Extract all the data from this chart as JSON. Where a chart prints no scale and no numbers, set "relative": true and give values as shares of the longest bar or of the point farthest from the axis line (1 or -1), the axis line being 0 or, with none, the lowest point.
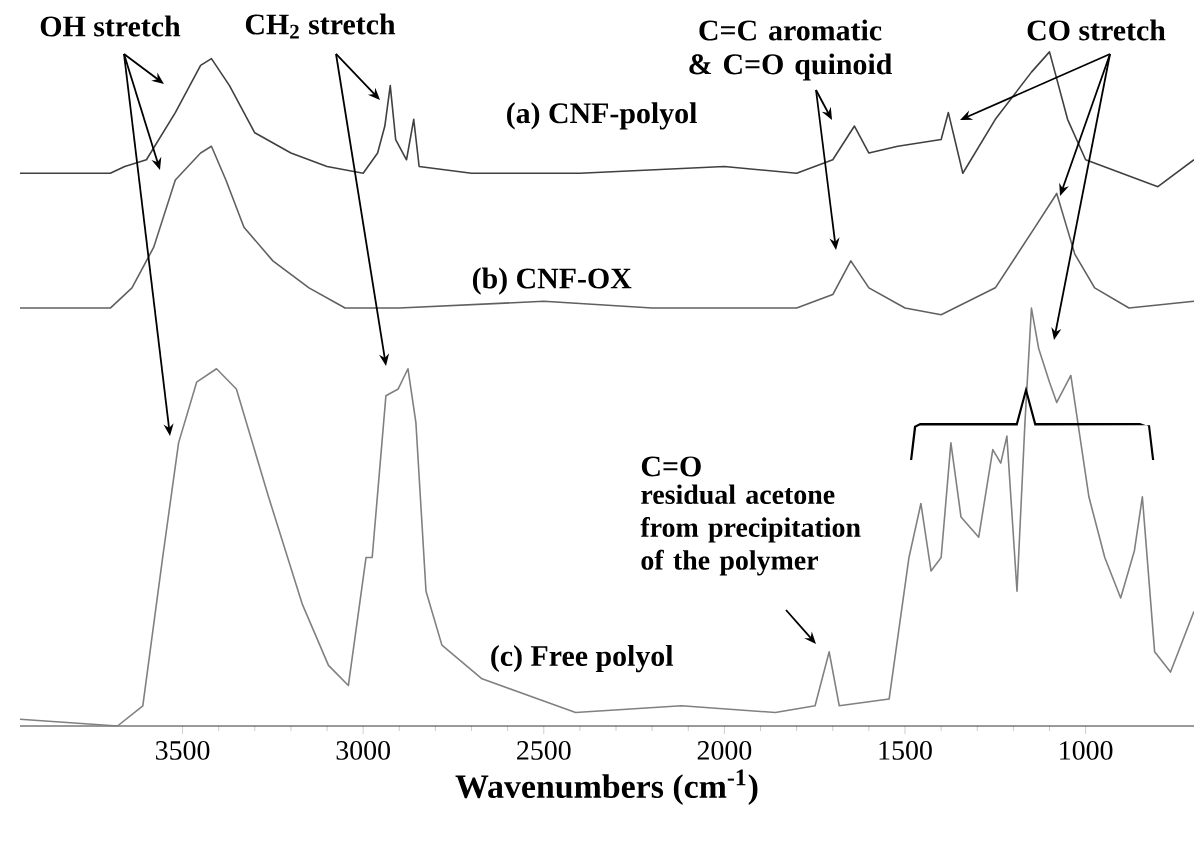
{
  "chart_data": {
    "type": "line",
    "relative": true,
    "xlabel": "Wavenumbers (cm$^{-1}$)",
    "xlim": [
      3950,
      700
    ],
    "xticks": [
      3500,
      3000,
      2500,
      2000,
      1500,
      1000
    ],
    "series": [
      {
        "name": "(a) CNF-polyol",
        "color": "#404040",
        "x": [
          3950,
          3700,
          3660,
          3600,
          3520,
          3450,
          3420,
          3370,
          3300,
          3200,
          3100,
          3000,
          2960,
          2940,
          2925,
          2910,
          2880,
          2860,
          2845,
          2700,
          2400,
          2000,
          1800,
          1700,
          1640,
          1600,
          1520,
          1400,
          1380,
          1340,
          1250,
          1150,
          1100,
          1050,
          1000,
          900,
          800,
          700
        ],
        "values": [
          0.82,
          0.82,
          0.83,
          0.84,
          0.91,
          0.98,
          0.99,
          0.95,
          0.88,
          0.85,
          0.83,
          0.82,
          0.85,
          0.89,
          0.95,
          0.87,
          0.84,
          0.9,
          0.83,
          0.82,
          0.82,
          0.83,
          0.82,
          0.84,
          0.89,
          0.85,
          0.86,
          0.87,
          0.91,
          0.82,
          0.9,
          0.97,
          1.0,
          0.9,
          0.84,
          0.82,
          0.8,
          0.84
        ]
      },
      {
        "name": "(b) CNF-OX",
        "color": "#606060",
        "x": [
          3950,
          3700,
          3640,
          3580,
          3520,
          3450,
          3420,
          3380,
          3330,
          3250,
          3150,
          3050,
          2900,
          2500,
          2200,
          2000,
          1800,
          1700,
          1650,
          1600,
          1500,
          1400,
          1250,
          1140,
          1080,
          1030,
          975,
          880,
          700
        ],
        "values": [
          0.62,
          0.62,
          0.65,
          0.71,
          0.81,
          0.85,
          0.86,
          0.81,
          0.74,
          0.69,
          0.65,
          0.62,
          0.62,
          0.63,
          0.62,
          0.62,
          0.62,
          0.64,
          0.69,
          0.65,
          0.62,
          0.61,
          0.65,
          0.74,
          0.79,
          0.7,
          0.65,
          0.62,
          0.63
        ]
      },
      {
        "name": "(c) Free polyol",
        "color": "#808080",
        "x": [
          3950,
          3680,
          3610,
          3555,
          3511,
          3461,
          3406,
          3351,
          3262,
          3168,
          3096,
          3041,
          2992,
          2975,
          2937,
          2903,
          2876,
          2854,
          2826,
          2782,
          2671,
          2412,
          2119,
          1859,
          1749,
          1710,
          1682,
          1544,
          1489,
          1456,
          1428,
          1400,
          1373,
          1345,
          1296,
          1257,
          1235,
          1218,
          1190,
          1168,
          1150,
          1130,
          1100,
          1080,
          1041,
          991,
          947,
          903,
          865,
          843,
          809,
          765,
          700
        ],
        "values": [
          0.01,
          0.0,
          0.03,
          0.25,
          0.42,
          0.51,
          0.53,
          0.5,
          0.34,
          0.18,
          0.09,
          0.06,
          0.25,
          0.25,
          0.49,
          0.5,
          0.53,
          0.45,
          0.2,
          0.12,
          0.07,
          0.02,
          0.03,
          0.02,
          0.03,
          0.11,
          0.03,
          0.04,
          0.25,
          0.33,
          0.23,
          0.25,
          0.42,
          0.31,
          0.28,
          0.41,
          0.39,
          0.43,
          0.2,
          0.45,
          0.62,
          0.56,
          0.51,
          0.48,
          0.52,
          0.34,
          0.25,
          0.19,
          0.26,
          0.34,
          0.11,
          0.08,
          0.17
        ]
      }
    ],
    "annotations": [
      "OH stretch",
      "CH$_{2}$ stretch",
      "C=C aromatic & C=O quinoid",
      "CO stretch",
      "C=O",
      "residual acetone from precipitation of the polymer"
    ]
  }
}
